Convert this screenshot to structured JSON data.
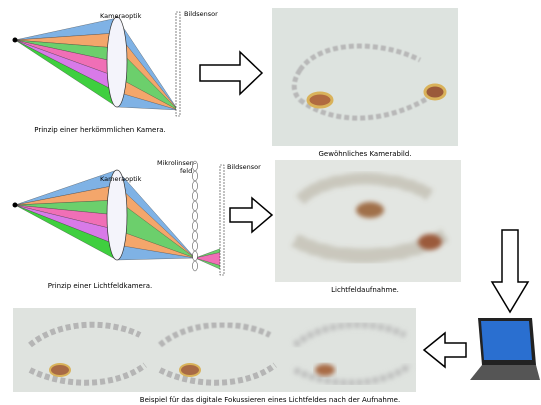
{
  "top": {
    "lens_label": "Kameraoptik",
    "sensor_label": "Bildsensor",
    "caption": "Prinzip einer herkömmlichen Kamera.",
    "photo_caption": "Gewöhnliches Kamerabild."
  },
  "middle": {
    "lens_label": "Kameraoptik",
    "microlens_label": [
      "Mikrolinsen-",
      "feld"
    ],
    "sensor_label": "Bildsensor",
    "caption": "Prinzip einer Lichtfeldkamera.",
    "photo_caption": "Lichtfeldaufnahme."
  },
  "bottom": {
    "caption": "Beispiel für das digitale Fokussieren eines Lichtfeldes nach der Aufnahme."
  }
}
